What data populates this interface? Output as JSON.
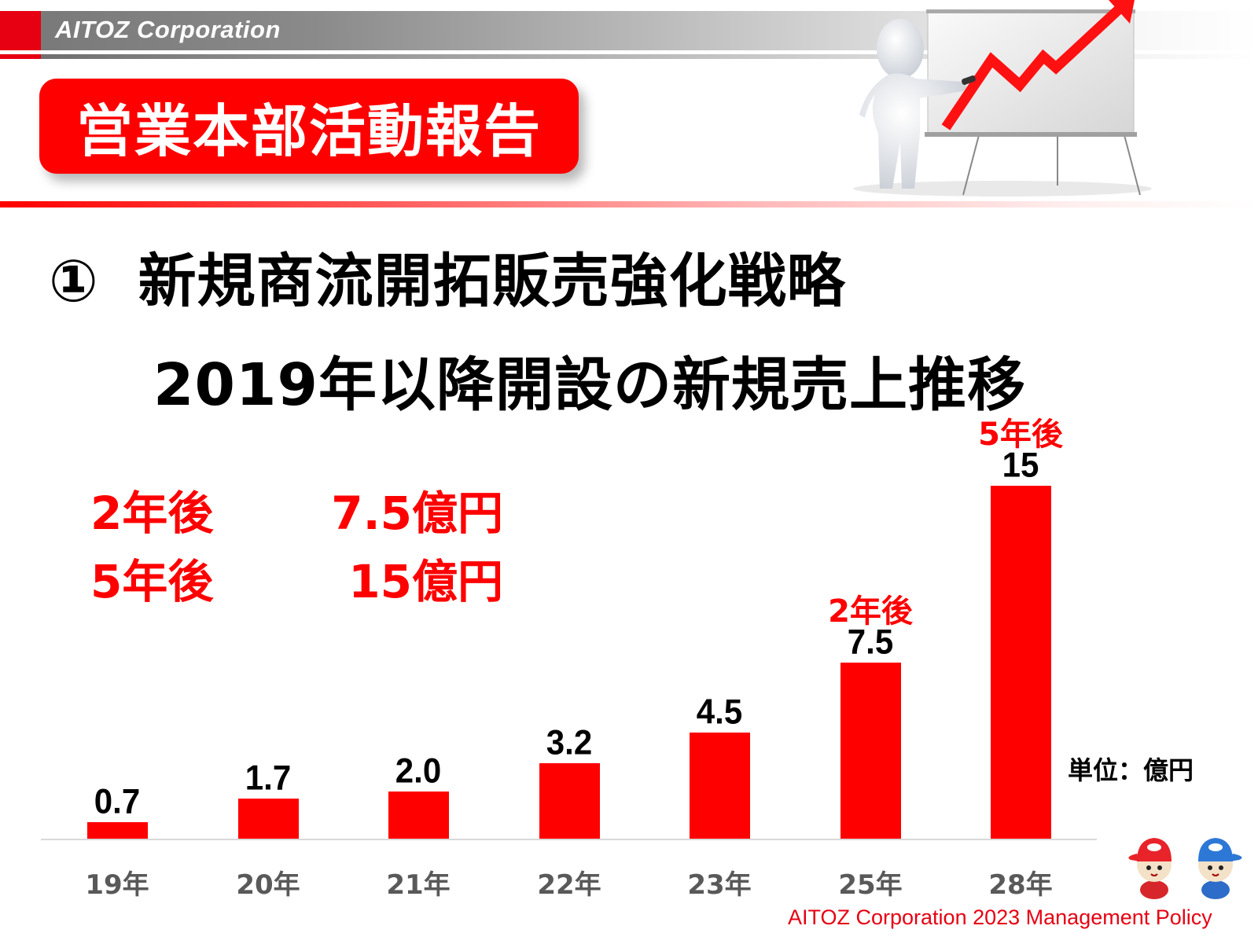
{
  "header": {
    "brand": "AITOZ Corporation",
    "title": "営業本部活動報告"
  },
  "slide": {
    "heading_number": "①",
    "heading_line1": "新規商流開拓販売強化戦略",
    "heading_line2": "2019年以降開設の新規売上推移"
  },
  "summary": [
    {
      "label": "2年後",
      "value": "7.5億円"
    },
    {
      "label": "5年後",
      "value": "15億円"
    }
  ],
  "unit_label": "単位：億円",
  "footer": "AITOZ Corporation 2023 Management Policy",
  "colors": {
    "accent": "#ff0000",
    "brand_red": "#e60012",
    "axis_label": "#595959",
    "baseline": "#d9d9d9"
  },
  "chart_data": {
    "type": "bar",
    "title": "2019年以降開設の新規売上推移",
    "xlabel": "",
    "ylabel": "",
    "unit": "億円",
    "categories": [
      "19年",
      "20年",
      "21年",
      "22年",
      "23年",
      "25年",
      "28年"
    ],
    "values": [
      0.7,
      1.7,
      2.0,
      3.2,
      4.5,
      7.5,
      15
    ],
    "value_labels": [
      "0.7",
      "1.7",
      "2.0",
      "3.2",
      "4.5",
      "7.5",
      "15"
    ],
    "annotations": [
      {
        "category": "25年",
        "text": "2年後"
      },
      {
        "category": "28年",
        "text": "5年後"
      }
    ],
    "ylim": [
      0,
      16
    ],
    "grid": false,
    "legend": "none",
    "bar_color": "#ff0000"
  }
}
